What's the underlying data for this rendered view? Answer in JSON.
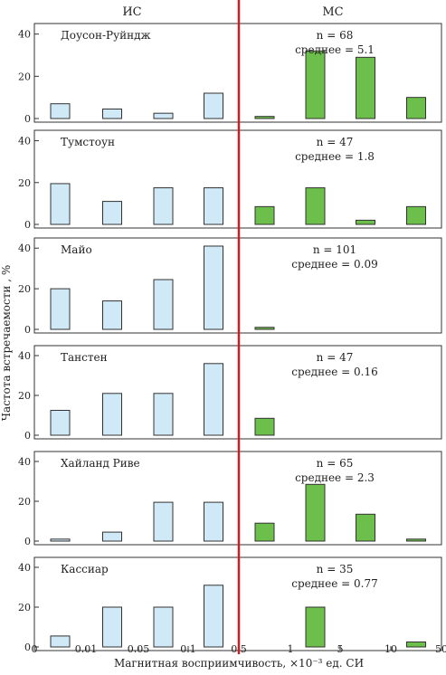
{
  "header": {
    "left": "ИС",
    "right": "МС"
  },
  "colors": {
    "is_fill": "#cfe9f6",
    "ms_fill": "#6cbf4a",
    "divider": "#cc1f24",
    "stroke": "#333333"
  },
  "chart_data": {
    "type": "bar",
    "layout": "six stacked histogram panels sharing one x axis",
    "ylabel": "Частота встречаемости , %",
    "xlabel": "Магнитная восприимчивость, ×10⁻³ ед. СИ",
    "x_ticks": [
      "0",
      "0.01",
      "0.05",
      "0.1",
      "0.5",
      "1",
      "5",
      "10",
      "50"
    ],
    "y_ticks": [
      0,
      20,
      40
    ],
    "ylim": [
      0,
      45
    ],
    "divider_at": "0.5",
    "bins": [
      "0–0.01",
      "0.01–0.05",
      "0.05–0.1",
      "0.1–0.5",
      "0.5–1",
      "1–5",
      "5–10",
      "10–50"
    ],
    "bin_groups": [
      "ИС",
      "ИС",
      "ИС",
      "ИС",
      "МС",
      "МС",
      "МС",
      "МС"
    ],
    "panels": [
      {
        "name": "Доусон-Руйндж",
        "n_label": "n = 68",
        "mean_label": "среднее = 5.1",
        "values": [
          7,
          4.5,
          2.5,
          12,
          1,
          32,
          29,
          10
        ]
      },
      {
        "name": "Тумстоун",
        "n_label": "n = 47",
        "mean_label": "среднее = 1.8",
        "values": [
          19.5,
          11,
          17.5,
          17.5,
          8.5,
          17.5,
          2,
          8.5
        ]
      },
      {
        "name": "Майо",
        "n_label": "n = 101",
        "mean_label": "среднее = 0.09",
        "values": [
          20,
          14,
          24.5,
          41,
          1,
          0,
          0,
          0
        ]
      },
      {
        "name": "Танстен",
        "n_label": "n = 47",
        "mean_label": "среднее = 0.16",
        "values": [
          12.5,
          21,
          21,
          36,
          8.5,
          0,
          0,
          0
        ]
      },
      {
        "name": "Хайланд Риве",
        "n_label": "n = 65",
        "mean_label": "среднее = 2.3",
        "values": [
          1,
          4.5,
          19.5,
          19.5,
          9,
          28.5,
          13.5,
          1
        ]
      },
      {
        "name": "Кассиар",
        "n_label": "n = 35",
        "mean_label": "среднее = 0.77",
        "values": [
          5.5,
          20,
          20,
          31,
          0,
          20,
          0,
          2.5
        ]
      }
    ]
  }
}
